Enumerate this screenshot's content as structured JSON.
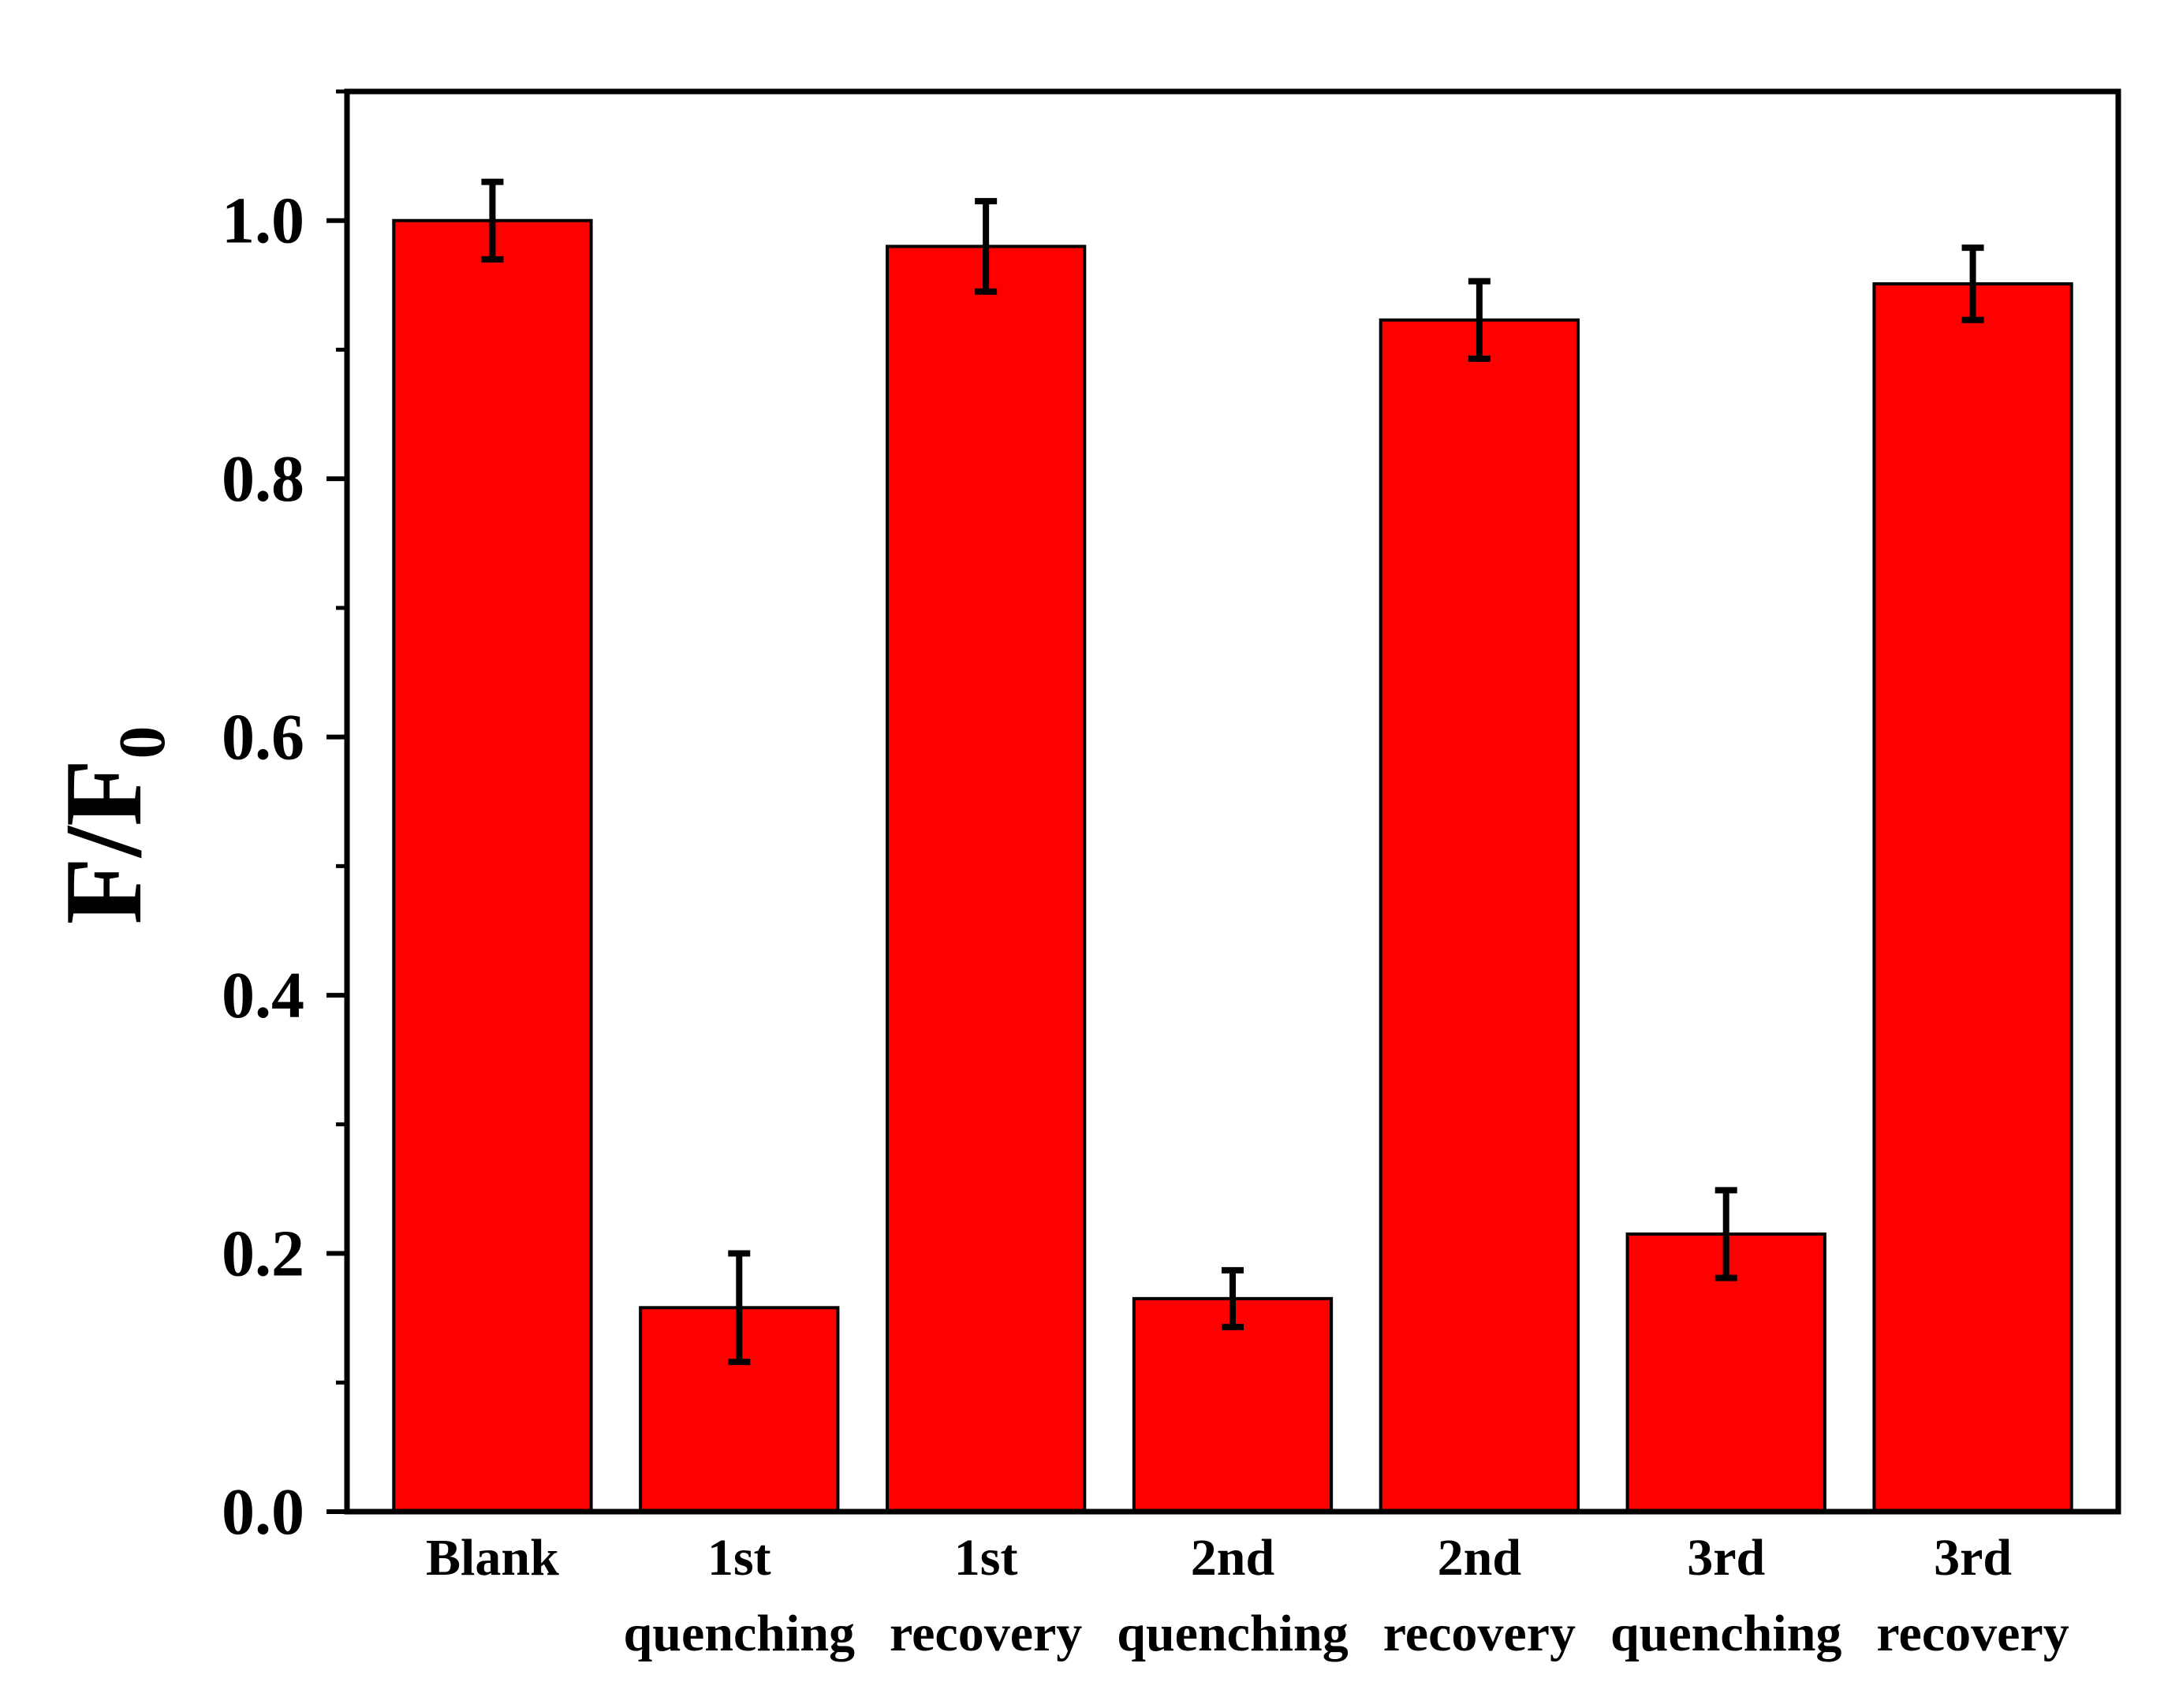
{
  "chart_data": {
    "type": "bar",
    "ylabel": {
      "main": "F/F",
      "subscript": "0"
    },
    "xlabel": "",
    "categories": [
      [
        "Blank"
      ],
      [
        "1st",
        "quenching"
      ],
      [
        "1st",
        "recovery"
      ],
      [
        "2nd",
        "quenching"
      ],
      [
        "2nd",
        "recovery"
      ],
      [
        "3rd",
        "quenching"
      ],
      [
        "3rd",
        "recovery"
      ]
    ],
    "values": [
      1.0,
      0.158,
      0.98,
      0.165,
      0.923,
      0.215,
      0.951
    ],
    "errors": [
      0.03,
      0.042,
      0.035,
      0.022,
      0.03,
      0.034,
      0.028
    ],
    "ylim": [
      0.0,
      1.1
    ],
    "yticks": [
      "0.0",
      "0.2",
      "0.4",
      "0.6",
      "0.8",
      "1.0"
    ],
    "ytick_values": [
      0.0,
      0.2,
      0.4,
      0.6,
      0.8,
      1.0
    ],
    "minor_ticks": [
      0.1,
      0.3,
      0.5,
      0.7,
      0.9,
      1.1
    ],
    "grid": false,
    "legend": "none",
    "bar_color": "#ff0000",
    "edge_color": "#000000",
    "error_color": "#000000"
  }
}
